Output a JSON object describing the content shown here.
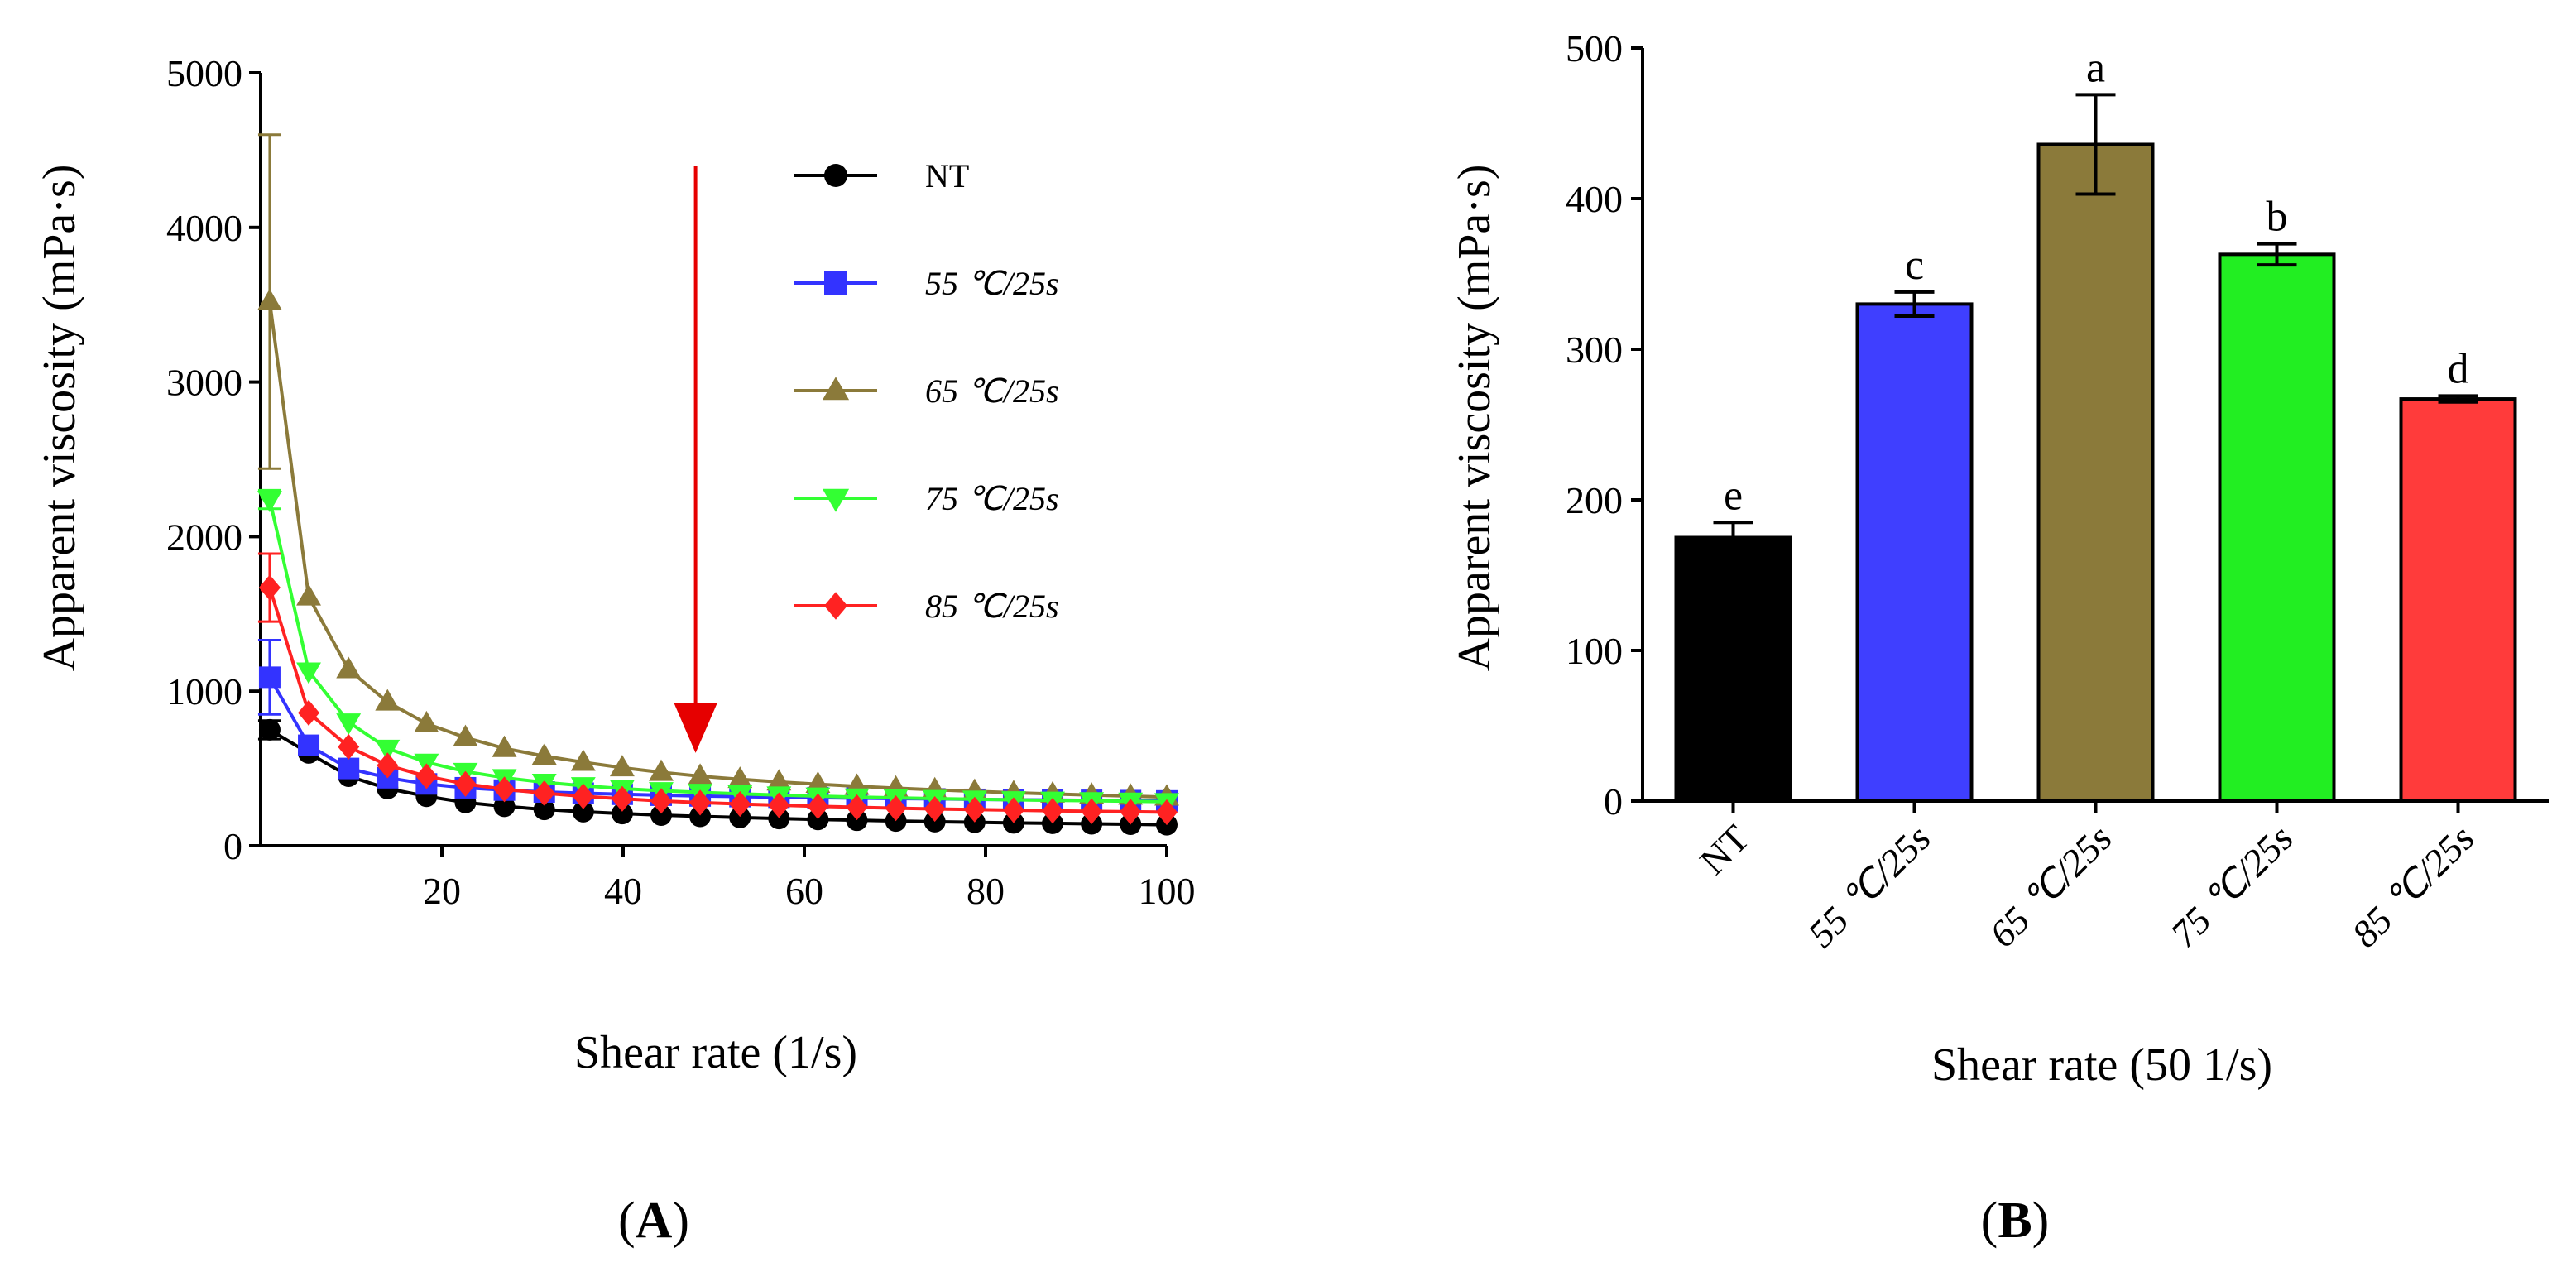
{
  "chart_data": [
    {
      "type": "line",
      "panel_label_open": "(",
      "panel_label": "A",
      "panel_label_close": ")",
      "xlabel": "Shear rate (1/s)",
      "ylabel": "Apparent viscosity (mPa·s)",
      "xlim": [
        0,
        100
      ],
      "ylim": [
        0,
        5000
      ],
      "xticks": [
        20,
        40,
        60,
        80,
        100
      ],
      "yticks": [
        0,
        1000,
        2000,
        3000,
        4000,
        5000
      ],
      "x": [
        1,
        5.3,
        9.7,
        14,
        18.3,
        22.6,
        26.9,
        31.3,
        35.6,
        39.9,
        44.2,
        48.5,
        52.9,
        57.2,
        61.5,
        65.8,
        70.1,
        74.4,
        78.8,
        83.1,
        87.4,
        91.7,
        96,
        100
      ],
      "legend_position": "top-right",
      "series": [
        {
          "name": "NT",
          "color": "#000000",
          "marker": "circle",
          "values": [
            750,
            600,
            450,
            370,
            320,
            280,
            255,
            235,
            220,
            208,
            198,
            190,
            183,
            176,
            170,
            165,
            160,
            156,
            152,
            148,
            145,
            142,
            139,
            136
          ],
          "error_first": 60
        },
        {
          "name": "55 ℃/25s",
          "color": "#3333ff",
          "marker": "square",
          "values": [
            1090,
            650,
            500,
            440,
            400,
            375,
            360,
            348,
            340,
            333,
            327,
            322,
            318,
            314,
            311,
            308,
            305,
            303,
            300,
            298,
            296,
            294,
            292,
            290
          ],
          "error_first": 240
        },
        {
          "name": "65 ℃/25s",
          "color": "#8b7a3a",
          "marker": "triangle-up",
          "values": [
            3520,
            1610,
            1140,
            930,
            790,
            700,
            630,
            580,
            540,
            505,
            475,
            450,
            430,
            413,
            398,
            385,
            373,
            362,
            352,
            343,
            335,
            328,
            321,
            315
          ],
          "error_first": 1080
        },
        {
          "name": "75 ℃/25s",
          "color": "#33ff33",
          "marker": "triangle-down",
          "values": [
            2240,
            1130,
            800,
            630,
            540,
            480,
            440,
            410,
            388,
            370,
            356,
            345,
            336,
            328,
            321,
            315,
            310,
            305,
            301,
            297,
            294,
            291,
            288,
            285
          ],
          "error_first": 60
        },
        {
          "name": "85 ℃/25s",
          "color": "#ff2222",
          "marker": "diamond",
          "values": [
            1670,
            860,
            640,
            520,
            450,
            400,
            365,
            340,
            320,
            304,
            290,
            279,
            270,
            262,
            255,
            249,
            243,
            238,
            234,
            230,
            226,
            223,
            220,
            217
          ],
          "error_first": 220
        }
      ],
      "annotation": {
        "type": "arrow",
        "color": "#e60000",
        "x": 48,
        "y_from": 4400,
        "y_to": 600
      }
    },
    {
      "type": "bar",
      "panel_label_open": "(",
      "panel_label": "B",
      "panel_label_close": ")",
      "xlabel": "Shear rate (50 1/s)",
      "ylabel": "Apparent viscosity (mPa·s)",
      "ylim": [
        0,
        500
      ],
      "yticks": [
        0,
        100,
        200,
        300,
        400,
        500
      ],
      "categories": [
        "NT",
        "55 ℃/25s",
        "65 ℃/25s",
        "75 ℃/25s",
        "85 ℃/25s"
      ],
      "values": [
        175,
        330,
        436,
        363,
        267
      ],
      "errors": [
        10,
        8,
        33,
        7,
        2
      ],
      "colors": [
        "#000000",
        "#3f3fff",
        "#8b7a3a",
        "#22ee22",
        "#ff3b3b"
      ],
      "significance": [
        "e",
        "c",
        "a",
        "b",
        "d"
      ]
    }
  ]
}
